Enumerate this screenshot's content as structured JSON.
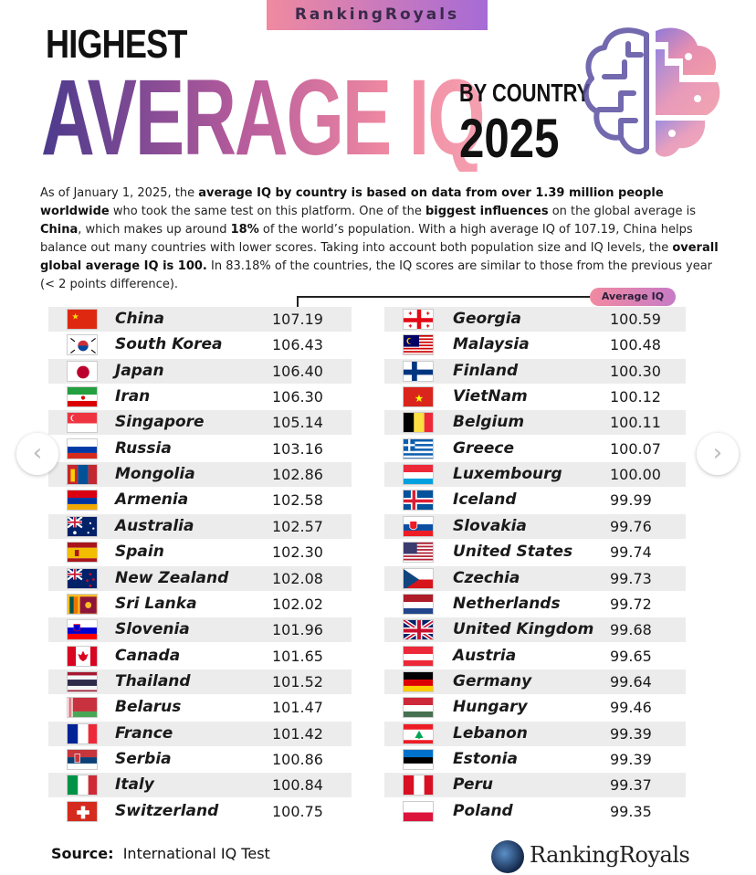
{
  "header": {
    "brand_tag": "RankingRoyals",
    "title_line1": "HIGHEST",
    "title_main": "AVERAGE IQ",
    "title_by": "BY COUNTRY",
    "title_year": "2025"
  },
  "intro": {
    "p1": "As of January 1, 2025, the ",
    "b1": "average IQ by country is based on data from over 1.39 million people worldwide",
    "p2": " who took the same test on this platform. One of the ",
    "b2": "biggest influences",
    "p3": " on the global average is ",
    "b3": "China",
    "p4": ", which makes up around ",
    "b4": "18%",
    "p5": " of the world’s population. With a high average IQ of 107.19, China helps balance out many countries with lower scores. Taking into account both population size and IQ levels, the ",
    "b5": "overall global average IQ is 100.",
    "p6": " In 83.18% of the countries, the IQ scores are similar to those from the previous year (< 2 points difference)."
  },
  "avg_label": "Average IQ",
  "left_column": [
    {
      "country": "China",
      "score": "107.19",
      "flag": "china"
    },
    {
      "country": "South Korea",
      "score": "106.43",
      "flag": "south-korea"
    },
    {
      "country": "Japan",
      "score": "106.40",
      "flag": "japan"
    },
    {
      "country": "Iran",
      "score": "106.30",
      "flag": "iran"
    },
    {
      "country": "Singapore",
      "score": "105.14",
      "flag": "singapore"
    },
    {
      "country": "Russia",
      "score": "103.16",
      "flag": "russia"
    },
    {
      "country": "Mongolia",
      "score": "102.86",
      "flag": "mongolia"
    },
    {
      "country": "Armenia",
      "score": "102.58",
      "flag": "armenia"
    },
    {
      "country": "Australia",
      "score": "102.57",
      "flag": "australia"
    },
    {
      "country": "Spain",
      "score": "102.30",
      "flag": "spain"
    },
    {
      "country": "New Zealand",
      "score": "102.08",
      "flag": "new-zealand"
    },
    {
      "country": "Sri Lanka",
      "score": "102.02",
      "flag": "sri-lanka"
    },
    {
      "country": "Slovenia",
      "score": "101.96",
      "flag": "slovenia"
    },
    {
      "country": "Canada",
      "score": "101.65",
      "flag": "canada"
    },
    {
      "country": "Thailand",
      "score": "101.52",
      "flag": "thailand"
    },
    {
      "country": "Belarus",
      "score": "101.47",
      "flag": "belarus"
    },
    {
      "country": "France",
      "score": "101.42",
      "flag": "france"
    },
    {
      "country": "Serbia",
      "score": "100.86",
      "flag": "serbia"
    },
    {
      "country": "Italy",
      "score": "100.84",
      "flag": "italy"
    },
    {
      "country": "Switzerland",
      "score": "100.75",
      "flag": "switzerland"
    }
  ],
  "right_column": [
    {
      "country": "Georgia",
      "score": "100.59",
      "flag": "georgia"
    },
    {
      "country": "Malaysia",
      "score": "100.48",
      "flag": "malaysia"
    },
    {
      "country": "Finland",
      "score": "100.30",
      "flag": "finland"
    },
    {
      "country": "VietNam",
      "score": "100.12",
      "flag": "vietnam"
    },
    {
      "country": "Belgium",
      "score": "100.11",
      "flag": "belgium"
    },
    {
      "country": "Greece",
      "score": "100.07",
      "flag": "greece"
    },
    {
      "country": "Luxembourg",
      "score": "100.00",
      "flag": "luxembourg"
    },
    {
      "country": "Iceland",
      "score": "99.99",
      "flag": "iceland"
    },
    {
      "country": "Slovakia",
      "score": "99.76",
      "flag": "slovakia"
    },
    {
      "country": "United States",
      "score": "99.74",
      "flag": "united-states"
    },
    {
      "country": "Czechia",
      "score": "99.73",
      "flag": "czechia"
    },
    {
      "country": "Netherlands",
      "score": "99.72",
      "flag": "netherlands"
    },
    {
      "country": "United Kingdom",
      "score": "99.68",
      "flag": "united-kingdom"
    },
    {
      "country": "Austria",
      "score": "99.65",
      "flag": "austria"
    },
    {
      "country": "Germany",
      "score": "99.64",
      "flag": "germany"
    },
    {
      "country": "Hungary",
      "score": "99.46",
      "flag": "hungary"
    },
    {
      "country": "Lebanon",
      "score": "99.39",
      "flag": "lebanon"
    },
    {
      "country": "Estonia",
      "score": "99.39",
      "flag": "estonia"
    },
    {
      "country": "Peru",
      "score": "99.37",
      "flag": "peru"
    },
    {
      "country": "Poland",
      "score": "99.35",
      "flag": "poland"
    }
  ],
  "footer": {
    "source_label": "Source:",
    "source_value": "International IQ Test",
    "brand": "RankingRoyals"
  },
  "nav": {
    "prev_icon": "chevron-left-icon",
    "next_icon": "chevron-right-icon"
  },
  "colors": {
    "gradient_start": "#4b3a8c",
    "gradient_mid": "#b65b9c",
    "gradient_end": "#f28ba2",
    "row_shade": "#ececec"
  }
}
